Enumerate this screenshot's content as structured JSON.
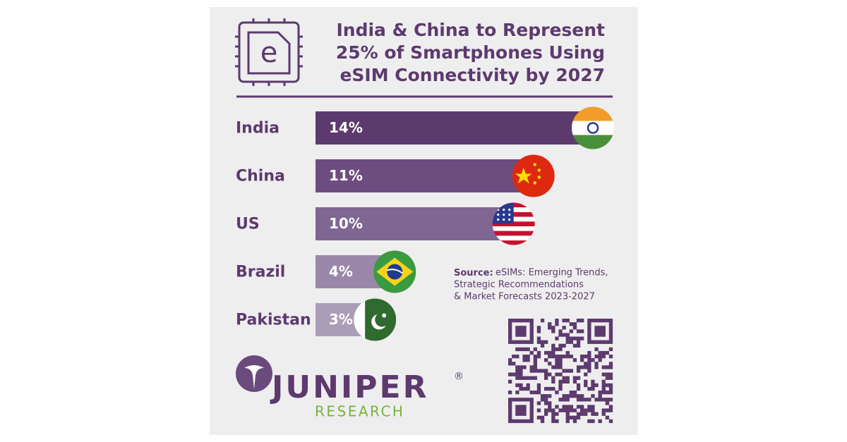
{
  "chart_data": {
    "type": "bar",
    "title": [
      "India & China to Represent",
      "25% of Smartphones Using",
      "eSIM Connectivity by 2027"
    ],
    "categories": [
      "India",
      "China",
      "US",
      "Brazil",
      "Pakistan"
    ],
    "values": [
      14,
      11,
      10,
      4,
      3
    ],
    "value_labels": [
      "14%",
      "11%",
      "10%",
      "4%",
      "3%"
    ],
    "colors": [
      "#5c3a6e",
      "#6d4d80",
      "#7f6791",
      "#9a87a9",
      "#aa9db6"
    ],
    "xlim": [
      0,
      14
    ],
    "source_label": "Source:",
    "source_text": [
      "eSIMs: Emerging Trends,",
      "Strategic Recommendations",
      "& Market Forecasts 2023-2027"
    ],
    "brand": "JUNIPER",
    "brand_mark": "®",
    "brand_sub": "RESEARCH"
  }
}
